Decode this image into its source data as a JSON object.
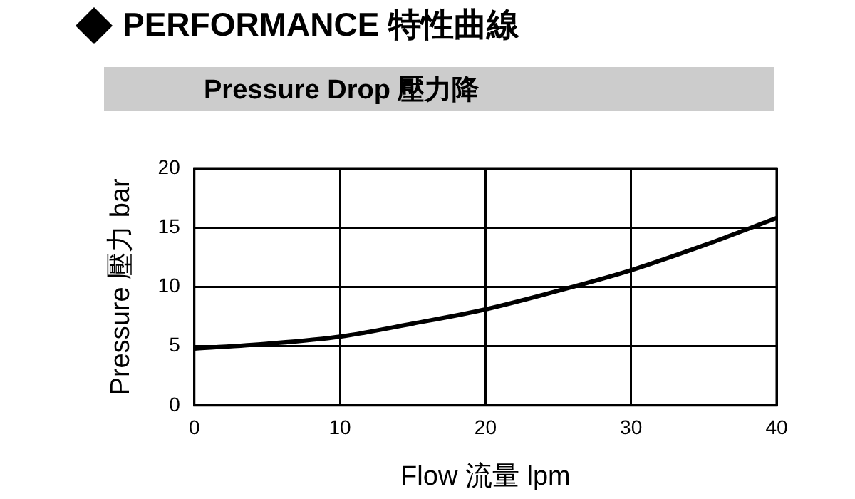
{
  "chart_data": {
    "type": "line",
    "title": "PERFORMANCE 特性曲線",
    "subtitle": "Pressure Drop 壓力降",
    "xlabel": "Flow 流量 lpm",
    "ylabel": "Pressure 壓力 bar",
    "x": [
      0,
      5,
      10,
      15,
      20,
      26,
      30,
      35,
      40
    ],
    "series": [
      {
        "color": "#000000",
        "values": [
          4.8,
          5.2,
          5.8,
          6.9,
          8.1,
          10,
          11.4,
          13.5,
          15.8
        ]
      }
    ],
    "xlim": [
      0,
      40
    ],
    "xticks": [
      0,
      10,
      20,
      30,
      40
    ],
    "ylim": [
      0,
      20
    ],
    "yticks": [
      0,
      5,
      10,
      15,
      20
    ],
    "grid": true,
    "legend": false,
    "marker": "none",
    "line_style": "solid"
  }
}
